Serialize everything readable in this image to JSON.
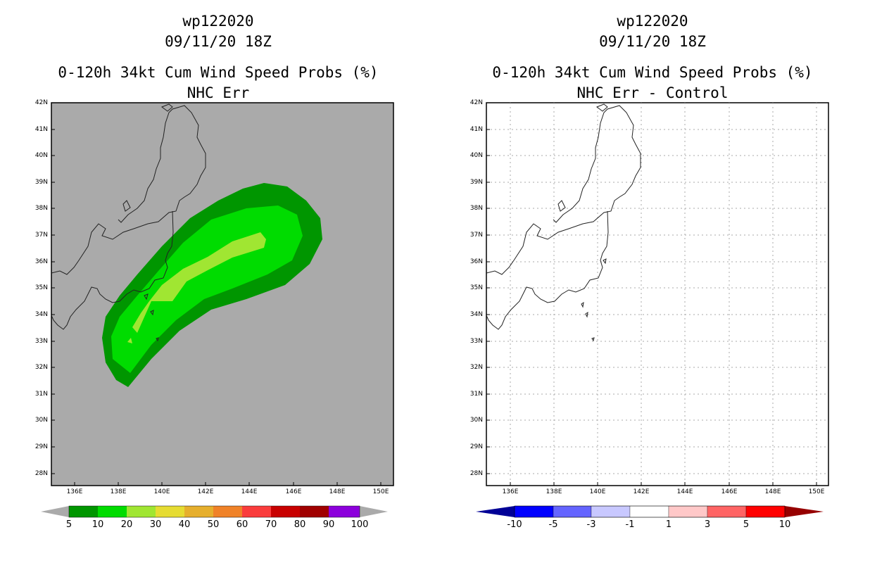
{
  "left_panel": {
    "title_lines": [
      "wp122020",
      "09/11/20 18Z",
      "0-120h 34kt Cum Wind Speed Probs (%)",
      "NHC Err"
    ],
    "background_color": "#aaaaaa",
    "y_axis_labels": [
      "42N",
      "41N",
      "40N",
      "39N",
      "38N",
      "37N",
      "36N",
      "35N",
      "34N",
      "33N",
      "32N",
      "31N",
      "30N",
      "29N",
      "28N"
    ],
    "x_axis_labels": [
      "136E",
      "138E",
      "140E",
      "142E",
      "144E",
      "146E",
      "148E",
      "150E"
    ],
    "colorbar": {
      "labels": [
        "5",
        "10",
        "20",
        "30",
        "40",
        "50",
        "60",
        "70",
        "80",
        "90",
        "100"
      ],
      "colors": [
        "#009600",
        "#00dc00",
        "#a0e632",
        "#e6dc32",
        "#e6af2d",
        "#f08228",
        "#fa3c3c",
        "#c80000",
        "#a00000",
        "#8c00dc"
      ],
      "end_color": "#aaaaaa"
    },
    "contour_colors": {
      "5-10": "#009600",
      "10-20": "#00dc00",
      "20-30": "#a0e632"
    }
  },
  "right_panel": {
    "title_lines": [
      "wp122020",
      "09/11/20 18Z",
      "0-120h 34kt Cum Wind Speed Probs (%)",
      "NHC Err - Control"
    ],
    "background_color": "#ffffff",
    "y_axis_labels": [
      "42N",
      "41N",
      "40N",
      "39N",
      "38N",
      "37N",
      "36N",
      "35N",
      "34N",
      "33N",
      "32N",
      "31N",
      "30N",
      "29N",
      "28N"
    ],
    "x_axis_labels": [
      "136E",
      "138E",
      "140E",
      "142E",
      "144E",
      "146E",
      "148E",
      "150E"
    ],
    "colorbar": {
      "labels": [
        "-10",
        "-5",
        "-3",
        "-1",
        "1",
        "3",
        "5",
        "10"
      ],
      "colors": [
        "#0000ff",
        "#6464ff",
        "#c8c8ff",
        "#ffffff",
        "#ffc8c8",
        "#ff6464",
        "#ff0000"
      ],
      "low_end_color": "#000096",
      "high_end_color": "#960000"
    }
  }
}
